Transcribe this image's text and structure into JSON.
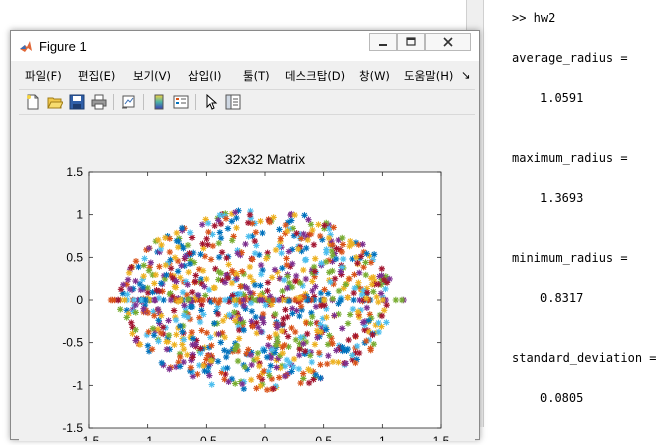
{
  "window": {
    "title": "Figure 1"
  },
  "menu": [
    "파일(F)",
    "편집(E)",
    "보기(V)",
    "삽입(I)",
    "툴(T)",
    "데스크탑(D)",
    "창(W)",
    "도움말(H)",
    "↘"
  ],
  "toolbar_icons": [
    "new-figure-icon",
    "open-file-icon",
    "save-icon",
    "print-icon",
    "link-plot-icon",
    "insert-colorbar-icon",
    "insert-legend-icon",
    "edit-plot-icon",
    "show-plot-tools-icon"
  ],
  "command_window": [
    {
      "text": ">> hw2",
      "indent": false
    },
    {
      "text": "average_radius =",
      "indent": false
    },
    {
      "text": "1.0591",
      "indent": true
    },
    {
      "text": "maximum_radius =",
      "indent": false
    },
    {
      "text": "1.3693",
      "indent": true
    },
    {
      "text": "minimum_radius =",
      "indent": false
    },
    {
      "text": "0.8317",
      "indent": true
    },
    {
      "text": "standard_deviation =",
      "indent": false
    },
    {
      "text": "0.0805",
      "indent": true
    }
  ],
  "chart_data": {
    "type": "scatter",
    "title": "32x32 Matrix",
    "xlim": [
      -1.5,
      1.5
    ],
    "ylim": [
      -1.5,
      1.5
    ],
    "xticks": [
      "-1.5",
      "-1",
      "-0.5",
      "0",
      "0.5",
      "1",
      "1.5"
    ],
    "yticks": [
      "1.5",
      "1",
      "0.5",
      "0",
      "-0.5",
      "-1",
      "-1.5"
    ],
    "marker": "*",
    "series_count": 32,
    "points_per_series": 32,
    "cloud_extent": {
      "x": [
        -1.37,
        1.23
      ],
      "y": [
        -1.08,
        1.08
      ]
    },
    "colors": [
      "#0072BD",
      "#D95319",
      "#EDB120",
      "#7E2F8E",
      "#77AC30",
      "#4DBEEE",
      "#A2142F"
    ]
  },
  "theme": {
    "axes_bg": "#ffffff",
    "figure_bg": "#f0f0f0"
  }
}
